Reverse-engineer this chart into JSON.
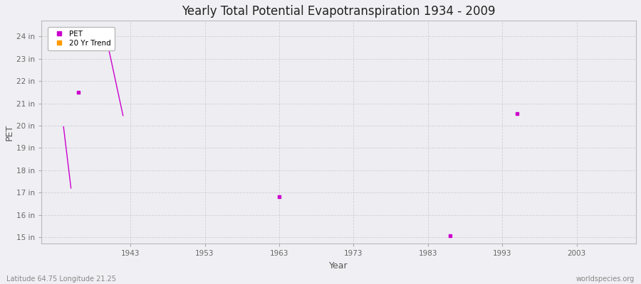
{
  "title": "Yearly Total Potential Evapotranspiration 1934 - 2009",
  "xlabel": "Year",
  "ylabel": "PET",
  "xlim": [
    1931,
    2011
  ],
  "ylim": [
    14.7,
    24.7
  ],
  "yticks": [
    15,
    16,
    17,
    18,
    19,
    20,
    21,
    22,
    23,
    24
  ],
  "ytick_labels": [
    "15 in",
    "16 in",
    "17 in",
    "18 in",
    "19 in",
    "20 in",
    "21 in",
    "22 in",
    "23 in",
    "24 in"
  ],
  "xticks": [
    1943,
    1953,
    1963,
    1973,
    1983,
    1993,
    2003
  ],
  "background_color": "#f0f0f4",
  "plot_bg_color": "#ededf2",
  "grid_color": "#cccccc",
  "pet_color": "#cc00cc",
  "trend_color": "#ff9900",
  "pet_points": [
    [
      1936,
      21.5
    ],
    [
      1963,
      16.8
    ],
    [
      1986,
      15.08
    ],
    [
      1995,
      20.55
    ]
  ],
  "pet_lines": [
    [
      [
        1934,
        19.95
      ],
      [
        1935,
        17.2
      ]
    ],
    [
      [
        1940,
        23.55
      ],
      [
        1942,
        20.45
      ]
    ]
  ],
  "footer_left": "Latitude 64.75 Longitude 21.25",
  "footer_right": "worldspecies.org",
  "legend_labels": [
    "PET",
    "20 Yr Trend"
  ]
}
